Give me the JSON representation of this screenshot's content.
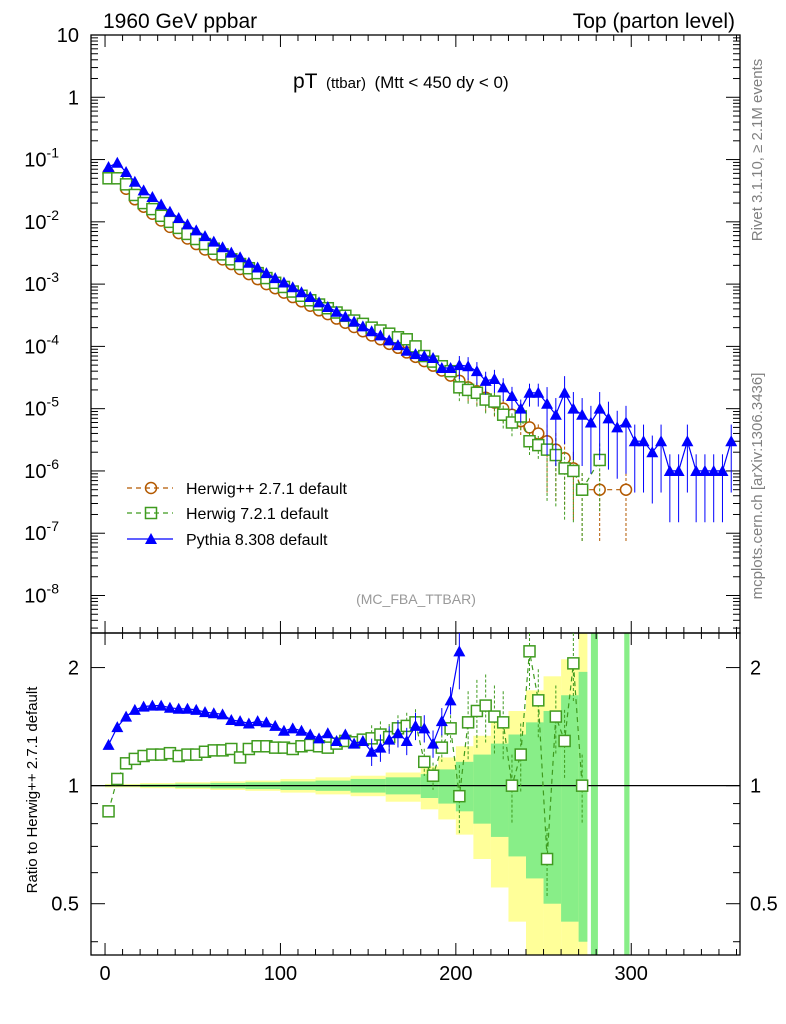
{
  "header": {
    "left": "1960 GeV ppbar",
    "right": "Top (parton level)"
  },
  "side_text": {
    "top": "Rivet 3.1.10, ≥ 2.1M events",
    "bottom": "mcplots.cern.ch [arXiv:1306.3436]"
  },
  "chart_data": {
    "type": "line",
    "title_main": "pT",
    "title_sub": "(ttbar)",
    "title_cut": "(Mtt < 450 dy < 0)",
    "analysis": "(MC_FBA_TTBAR)",
    "x_ticks": [
      "0",
      "100",
      "200",
      "300"
    ],
    "xlim": [
      -8,
      362
    ],
    "main": {
      "yscale": "log",
      "ylim": [
        2.5e-09,
        10
      ],
      "y_ticks": [
        {
          "base": "10",
          "exp": "-8",
          "value": 1e-08
        },
        {
          "base": "10",
          "exp": "-7",
          "value": 1e-07
        },
        {
          "base": "10",
          "exp": "-6",
          "value": 1e-06
        },
        {
          "base": "10",
          "exp": "-5",
          "value": 1e-05
        },
        {
          "base": "10",
          "exp": "-4",
          "value": 0.0001
        },
        {
          "base": "10",
          "exp": "-3",
          "value": 0.001
        },
        {
          "base": "10",
          "exp": "-2",
          "value": 0.01
        },
        {
          "base": "10",
          "exp": "-1",
          "value": 0.1
        },
        {
          "base": "1",
          "exp": "",
          "value": 1
        },
        {
          "base": "10",
          "exp": "",
          "value": 10
        }
      ],
      "series": [
        {
          "name": "Herwig++ 2.7.1 default",
          "color": "#b35900",
          "marker": "circle",
          "dash": "5,4",
          "x": [
            2,
            7,
            12,
            17,
            22,
            27,
            32,
            37,
            42,
            47,
            52,
            57,
            62,
            67,
            72,
            77,
            82,
            87,
            92,
            97,
            102,
            107,
            112,
            117,
            122,
            127,
            132,
            137,
            142,
            147,
            152,
            157,
            162,
            167,
            172,
            177,
            182,
            187,
            192,
            197,
            202,
            207,
            212,
            217,
            222,
            227,
            232,
            237,
            242,
            247,
            252,
            257,
            262,
            267,
            272,
            282,
            297
          ],
          "y": [
            0.06,
            0.05,
            0.034,
            0.023,
            0.0175,
            0.0135,
            0.0105,
            0.0083,
            0.0066,
            0.0054,
            0.0044,
            0.0036,
            0.003,
            0.0025,
            0.0021,
            0.00175,
            0.00145,
            0.0012,
            0.001,
            0.00086,
            0.00073,
            0.00062,
            0.00053,
            0.00045,
            0.00038,
            0.00033,
            0.00028,
            0.00024,
            0.000205,
            0.000175,
            0.00015,
            0.00013,
            0.00011,
            9.5e-05,
            8e-05,
            6.8e-05,
            5.8e-05,
            4.9e-05,
            4.1e-05,
            3.4e-05,
            2.8e-05,
            2.2e-05,
            1.9e-05,
            1.5e-05,
            1.25e-05,
            1e-05,
            8e-06,
            6.3e-06,
            5e-06,
            4e-06,
            3e-06,
            2.2e-06,
            1.6e-06,
            1.1e-06,
            5e-07,
            5e-07,
            5e-07
          ]
        },
        {
          "name": "Herwig 7.2.1 default",
          "color": "#3f9b1f",
          "marker": "square",
          "dash": "5,4",
          "x": [
            2,
            7,
            12,
            17,
            22,
            27,
            32,
            37,
            42,
            47,
            52,
            57,
            62,
            67,
            72,
            77,
            82,
            87,
            92,
            97,
            102,
            107,
            112,
            117,
            122,
            127,
            132,
            137,
            142,
            147,
            152,
            157,
            162,
            167,
            172,
            177,
            182,
            187,
            192,
            197,
            202,
            207,
            212,
            217,
            222,
            227,
            232,
            237,
            242,
            247,
            252,
            257,
            262,
            267,
            272,
            282
          ],
          "y": [
            0.05,
            0.05,
            0.04,
            0.027,
            0.02,
            0.016,
            0.0125,
            0.01,
            0.008,
            0.0064,
            0.0053,
            0.0044,
            0.0037,
            0.003,
            0.0025,
            0.0021,
            0.0018,
            0.0015,
            0.00125,
            0.00105,
            0.0009,
            0.00076,
            0.00065,
            0.00055,
            0.00047,
            0.00041,
            0.00035,
            0.00031,
            0.00026,
            0.00023,
            0.0002,
            0.00018,
            0.00016,
            0.00014,
            0.00013,
            0.0001,
            7e-05,
            5.7e-05,
            4.8e-05,
            4e-05,
            2.2e-05,
            2e-05,
            1.8e-05,
            1.4e-05,
            1.3e-05,
            8e-06,
            6e-06,
            7.5e-06,
            3e-06,
            2.6e-06,
            2.2e-06,
            1.8e-06,
            1.1e-06,
            1e-06,
            5e-07,
            1.5e-06
          ]
        },
        {
          "name": "Pythia 8.308 default",
          "color": "#0000ff",
          "marker": "triangle",
          "dash": "",
          "x": [
            2,
            7,
            12,
            17,
            22,
            27,
            32,
            37,
            42,
            47,
            52,
            57,
            62,
            67,
            72,
            77,
            82,
            87,
            92,
            97,
            102,
            107,
            112,
            117,
            122,
            127,
            132,
            137,
            142,
            147,
            152,
            157,
            162,
            167,
            172,
            177,
            182,
            187,
            192,
            197,
            202,
            207,
            212,
            217,
            222,
            227,
            232,
            237,
            242,
            247,
            252,
            257,
            262,
            267,
            272,
            277,
            282,
            287,
            292,
            297,
            302,
            307,
            312,
            317,
            322,
            327,
            332,
            337,
            342,
            347,
            352,
            357
          ],
          "y": [
            0.076,
            0.089,
            0.063,
            0.044,
            0.032,
            0.025,
            0.019,
            0.0145,
            0.0115,
            0.0091,
            0.0073,
            0.0059,
            0.0048,
            0.0039,
            0.0032,
            0.0027,
            0.0022,
            0.00185,
            0.0015,
            0.00125,
            0.00106,
            0.00089,
            0.00074,
            0.00062,
            0.00051,
            0.00043,
            0.00036,
            0.0003,
            0.00025,
            0.00021,
            0.000175,
            0.00015,
            0.000125,
            0.000105,
            8.5e-05,
            7.5e-05,
            7e-05,
            6.5e-05,
            4.5e-05,
            4.5e-05,
            5e-05,
            4.8e-05,
            4e-05,
            2.8e-05,
            3e-05,
            2.2e-05,
            1.6e-05,
            1e-05,
            1.8e-05,
            1.8e-05,
            1.2e-05,
            8e-06,
            1.8e-05,
            1e-05,
            8e-06,
            6e-06,
            1e-05,
            7e-06,
            5e-06,
            6e-06,
            3e-06,
            3e-06,
            2e-06,
            3e-06,
            1e-06,
            1e-06,
            3e-06,
            1e-06,
            1e-06,
            1e-06,
            1e-06,
            3e-06
          ]
        }
      ]
    },
    "ratio": {
      "ylabel": "Ratio to Herwig++ 2.7.1 default",
      "yscale": "log",
      "ylim": [
        0.37,
        2.45
      ],
      "y_ticks": [
        {
          "label": "0.5",
          "value": 0.5
        },
        {
          "label": "1",
          "value": 1
        },
        {
          "label": "2",
          "value": 2
        }
      ],
      "band_yellow": {
        "color": "#ffff99",
        "x": [
          0,
          20,
          40,
          60,
          80,
          100,
          120,
          140,
          160,
          180,
          190,
          200,
          210,
          220,
          230,
          240,
          250,
          260,
          270
        ],
        "up": [
          1.01,
          1.015,
          1.02,
          1.025,
          1.03,
          1.04,
          1.05,
          1.06,
          1.08,
          1.12,
          1.18,
          1.26,
          1.34,
          1.45,
          1.55,
          1.75,
          1.9,
          2.1,
          2.45
        ],
        "dn": [
          0.99,
          0.985,
          0.98,
          0.975,
          0.97,
          0.96,
          0.95,
          0.94,
          0.91,
          0.87,
          0.82,
          0.75,
          0.65,
          0.55,
          0.45,
          0.37,
          0.37,
          0.37,
          0.37
        ]
      },
      "band_green": {
        "color": "#88ee88",
        "x": [
          0,
          20,
          40,
          60,
          80,
          100,
          120,
          140,
          160,
          180,
          190,
          200,
          210,
          220,
          230,
          240,
          250,
          260,
          270
        ],
        "up": [
          1.005,
          1.008,
          1.012,
          1.016,
          1.02,
          1.025,
          1.03,
          1.04,
          1.05,
          1.07,
          1.1,
          1.15,
          1.2,
          1.28,
          1.35,
          1.45,
          1.55,
          1.7,
          1.95
        ],
        "dn": [
          0.995,
          0.992,
          0.988,
          0.984,
          0.98,
          0.975,
          0.97,
          0.96,
          0.95,
          0.93,
          0.9,
          0.86,
          0.8,
          0.74,
          0.66,
          0.58,
          0.5,
          0.45,
          0.4
        ]
      },
      "series": [
        {
          "color": "#3f9b1f",
          "marker": "square",
          "dash": "5,4",
          "x": [
            2,
            7,
            12,
            17,
            22,
            27,
            32,
            37,
            42,
            47,
            52,
            57,
            62,
            67,
            72,
            77,
            82,
            87,
            92,
            97,
            102,
            107,
            112,
            117,
            122,
            127,
            132,
            137,
            142,
            147,
            152,
            157,
            162,
            167,
            172,
            177,
            182,
            187,
            192,
            197,
            202,
            207,
            212,
            217,
            222,
            227,
            232,
            237,
            242,
            247,
            252,
            257,
            262,
            267,
            272
          ],
          "y": [
            0.86,
            1.04,
            1.14,
            1.17,
            1.19,
            1.2,
            1.2,
            1.21,
            1.19,
            1.2,
            1.2,
            1.22,
            1.23,
            1.23,
            1.24,
            1.18,
            1.24,
            1.26,
            1.26,
            1.25,
            1.25,
            1.24,
            1.26,
            1.27,
            1.26,
            1.25,
            1.28,
            1.3,
            1.29,
            1.31,
            1.32,
            1.35,
            1.33,
            1.4,
            1.42,
            1.45,
            1.15,
            1.06,
            1.25,
            1.4,
            0.94,
            1.45,
            1.55,
            1.6,
            1.5,
            1.45,
            1.0,
            1.2,
            2.2,
            1.65,
            0.65,
            1.5,
            1.3,
            2.05,
            1.0
          ]
        },
        {
          "color": "#0000ff",
          "marker": "triangle",
          "dash": "",
          "x": [
            2,
            7,
            12,
            17,
            22,
            27,
            32,
            37,
            42,
            47,
            52,
            57,
            62,
            67,
            72,
            77,
            82,
            87,
            92,
            97,
            102,
            107,
            112,
            117,
            122,
            127,
            132,
            137,
            142,
            147,
            152,
            157,
            162,
            167,
            172,
            177,
            182,
            187,
            192,
            197,
            202
          ],
          "y": [
            1.27,
            1.41,
            1.5,
            1.56,
            1.59,
            1.6,
            1.6,
            1.58,
            1.57,
            1.57,
            1.56,
            1.54,
            1.53,
            1.52,
            1.47,
            1.46,
            1.44,
            1.46,
            1.45,
            1.42,
            1.38,
            1.4,
            1.38,
            1.35,
            1.32,
            1.36,
            1.3,
            1.35,
            1.28,
            1.3,
            1.22,
            1.25,
            1.31,
            1.36,
            1.3,
            1.42,
            1.4,
            1.28,
            1.46,
            1.65,
            2.2
          ]
        }
      ]
    }
  }
}
